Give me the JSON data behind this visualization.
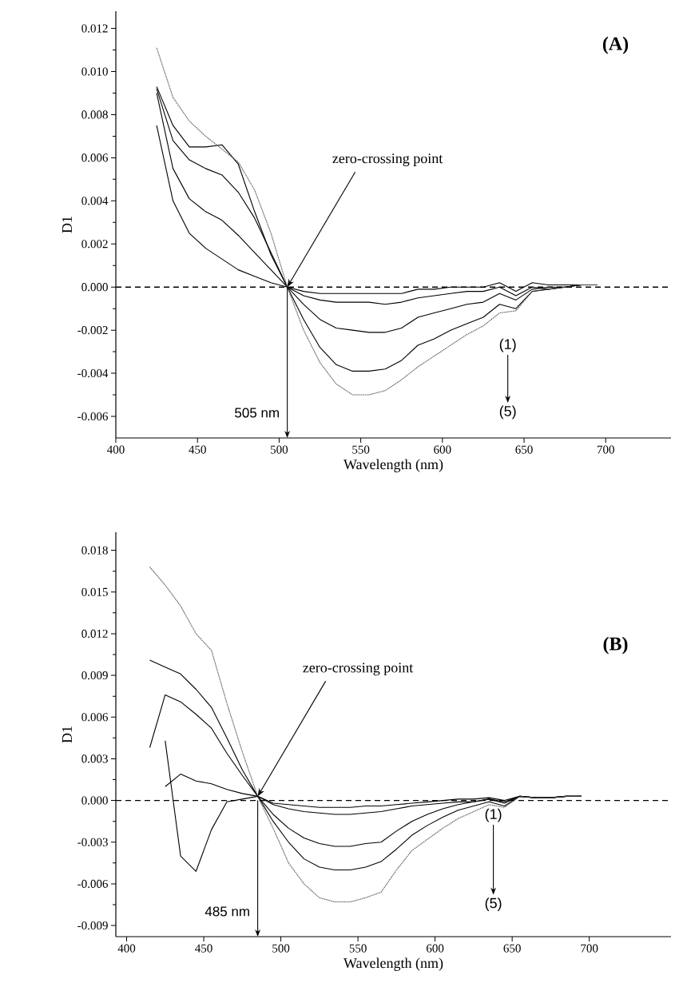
{
  "chart_data": [
    {
      "type": "line",
      "title": "(A)",
      "xlabel": "Wavelength (nm)",
      "ylabel": "D1",
      "x": [
        425,
        435,
        445,
        455,
        465,
        475,
        485,
        495,
        505,
        515,
        525,
        535,
        545,
        555,
        565,
        575,
        585,
        595,
        605,
        615,
        625,
        635,
        645,
        655,
        665,
        675,
        685,
        695
      ],
      "series": [
        {
          "color": "#000000",
          "values": [
            0.0075,
            0.004,
            0.0025,
            0.0018,
            0.0013,
            0.0008,
            0.0005,
            0.0002,
            0.0,
            -0.0002,
            -0.0003,
            -0.0003,
            -0.0003,
            -0.0003,
            -0.0003,
            -0.0003,
            -0.0001,
            -0.0001,
            0.0,
            0.0,
            0.0,
            0.0002,
            -0.0002,
            0.0002,
            0.0001,
            0.0001,
            0.0001,
            0.0001
          ]
        },
        {
          "color": "#000000",
          "values": [
            0.009,
            0.0055,
            0.0041,
            0.0035,
            0.0031,
            0.0024,
            0.0016,
            0.0008,
            0.0,
            -0.0004,
            -0.0006,
            -0.0007,
            -0.0007,
            -0.0007,
            -0.0008,
            -0.0007,
            -0.0005,
            -0.0004,
            -0.0003,
            -0.0002,
            -0.0002,
            0.0,
            -0.0004,
            0.0,
            -0.0001,
            0.0,
            0.0001,
            0.0001
          ]
        },
        {
          "color": "#000000",
          "values": [
            0.0092,
            0.0068,
            0.0059,
            0.0055,
            0.0052,
            0.0044,
            0.0032,
            0.0016,
            0.0,
            -0.0008,
            -0.0015,
            -0.0019,
            -0.002,
            -0.0021,
            -0.0021,
            -0.0019,
            -0.0014,
            -0.0012,
            -0.001,
            -0.0008,
            -0.0007,
            -0.0003,
            -0.0006,
            -0.0001,
            0.0,
            0.0,
            0.0001,
            0.0001
          ]
        },
        {
          "color": "#000000",
          "values": [
            0.0093,
            0.0075,
            0.0065,
            0.0065,
            0.0066,
            0.0057,
            0.0035,
            0.0015,
            0.0,
            -0.0015,
            -0.0028,
            -0.0036,
            -0.0039,
            -0.0039,
            -0.0038,
            -0.0034,
            -0.0027,
            -0.0024,
            -0.002,
            -0.0017,
            -0.0014,
            -0.0008,
            -0.001,
            -0.0002,
            -0.0001,
            0.0,
            0.0001,
            0.0001
          ]
        },
        {
          "color": "#555555",
          "line_style": "dotted",
          "values": [
            0.0111,
            0.0088,
            0.0077,
            0.007,
            0.0064,
            0.0058,
            0.0045,
            0.0025,
            0.0,
            -0.002,
            -0.0035,
            -0.0045,
            -0.005,
            -0.005,
            -0.0048,
            -0.0043,
            -0.0037,
            -0.0032,
            -0.0027,
            -0.0022,
            -0.0018,
            -0.0012,
            -0.0011,
            -0.0002,
            -0.0001,
            0.0,
            0.0001,
            0.0001
          ]
        }
      ],
      "xlim": [
        400,
        740
      ],
      "ylim": [
        -0.007,
        0.0128
      ],
      "xticks": [
        400,
        450,
        500,
        550,
        600,
        650,
        700
      ],
      "yticks": [
        {
          "value": -0.006,
          "label": "-0.006"
        },
        {
          "value": -0.004,
          "label": "-0.004"
        },
        {
          "value": -0.002,
          "label": "-0.002"
        },
        {
          "value": 0,
          "label": "0.000"
        },
        {
          "value": 0.002,
          "label": "0.002"
        },
        {
          "value": 0.004,
          "label": "0.004"
        },
        {
          "value": 0.006,
          "label": "0.006"
        },
        {
          "value": 0.008,
          "label": "0.008"
        },
        {
          "value": 0.01,
          "label": "0.010"
        },
        {
          "value": 0.012,
          "label": "0.012"
        }
      ],
      "ref_lines": [
        {
          "axis": "y",
          "value": 0,
          "line_style": "dashed"
        },
        {
          "axis": "x",
          "value": 505,
          "label": "505 nm"
        }
      ],
      "annotations": [
        {
          "text": "zero-crossing point",
          "x": 505,
          "y": 0
        },
        "(1)",
        "(5)"
      ],
      "grid": false,
      "marker": "none"
    },
    {
      "type": "line",
      "title": "(B)",
      "xlabel": "Wavelength (nm)",
      "ylabel": "D1",
      "x": [
        415,
        425,
        435,
        445,
        455,
        465,
        475,
        485,
        495,
        505,
        515,
        525,
        535,
        545,
        555,
        565,
        575,
        585,
        595,
        605,
        615,
        625,
        635,
        645,
        655,
        665,
        675,
        685,
        695
      ],
      "series": [
        {
          "color": "#000000",
          "values": [
            null,
            0.0043,
            -0.004,
            -0.0051,
            -0.0021,
            -0.0001,
            0.0001,
            0.0003,
            -0.0002,
            -0.0003,
            -0.0004,
            -0.0005,
            -0.0005,
            -0.0005,
            -0.0004,
            -0.0004,
            -0.0003,
            -0.0002,
            -0.0001,
            0.0,
            0.0001,
            0.0001,
            0.0002,
            0.0,
            0.0003,
            0.0002,
            0.0002,
            0.0003,
            0.0003
          ]
        },
        {
          "color": "#000000",
          "values": [
            null,
            0.001,
            0.0019,
            0.0014,
            0.0012,
            0.0008,
            0.0005,
            0.0003,
            -0.0003,
            -0.0006,
            -0.0008,
            -0.0009,
            -0.001,
            -0.001,
            -0.0009,
            -0.0008,
            -0.0006,
            -0.0004,
            -0.0003,
            -0.0002,
            -0.0001,
            -0.0001,
            0.0001,
            -0.0001,
            0.0003,
            0.0002,
            0.0002,
            0.0003,
            0.0003
          ]
        },
        {
          "color": "#000000",
          "values": [
            0.0038,
            0.0076,
            0.0071,
            0.0062,
            0.0052,
            0.0034,
            0.0018,
            0.0003,
            -0.001,
            -0.002,
            -0.0027,
            -0.0031,
            -0.0033,
            -0.0033,
            -0.0031,
            -0.003,
            -0.0022,
            -0.0015,
            -0.001,
            -0.0006,
            -0.0003,
            -0.0001,
            0.0001,
            -0.0002,
            0.0003,
            0.0002,
            0.0002,
            0.0003,
            0.0003
          ]
        },
        {
          "color": "#000000",
          "values": [
            0.0101,
            0.0096,
            0.0091,
            0.008,
            0.0067,
            0.0045,
            0.0022,
            0.0003,
            -0.0015,
            -0.003,
            -0.0042,
            -0.0048,
            -0.005,
            -0.005,
            -0.0048,
            -0.0044,
            -0.0035,
            -0.0025,
            -0.0018,
            -0.0012,
            -0.0007,
            -0.0004,
            -0.0001,
            -0.0004,
            0.0003,
            0.0002,
            0.0002,
            0.0003,
            0.0003
          ]
        },
        {
          "color": "#555555",
          "line_style": "dotted",
          "values": [
            0.0168,
            0.0155,
            0.014,
            0.012,
            0.0108,
            0.007,
            0.0035,
            0.0003,
            -0.002,
            -0.0045,
            -0.006,
            -0.007,
            -0.0073,
            -0.0073,
            -0.007,
            -0.0066,
            -0.005,
            -0.0036,
            -0.0028,
            -0.002,
            -0.0013,
            -0.0008,
            -0.0003,
            -0.0005,
            0.0003,
            0.0002,
            0.0002,
            0.0003,
            0.0003
          ]
        }
      ],
      "xlim": [
        393,
        753
      ],
      "ylim": [
        -0.0098,
        0.0193
      ],
      "xticks": [
        400,
        450,
        500,
        550,
        600,
        650,
        700
      ],
      "yticks": [
        {
          "value": -0.009,
          "label": "-0.009"
        },
        {
          "value": -0.006,
          "label": "-0.006"
        },
        {
          "value": -0.003,
          "label": "-0.003"
        },
        {
          "value": 0,
          "label": "0.000"
        },
        {
          "value": 0.003,
          "label": "0.003"
        },
        {
          "value": 0.006,
          "label": "0.006"
        },
        {
          "value": 0.009,
          "label": "0.009"
        },
        {
          "value": 0.012,
          "label": "0.012"
        },
        {
          "value": 0.015,
          "label": "0.015"
        },
        {
          "value": 0.018,
          "label": "0.018"
        }
      ],
      "ref_lines": [
        {
          "axis": "y",
          "value": 0,
          "line_style": "dashed"
        },
        {
          "axis": "x",
          "value": 485,
          "label": "485 nm"
        }
      ],
      "annotations": [
        {
          "text": "zero-crossing point",
          "x": 485,
          "y": 0.0003
        },
        "(1)",
        "(5)"
      ],
      "grid": false,
      "marker": "none"
    }
  ]
}
